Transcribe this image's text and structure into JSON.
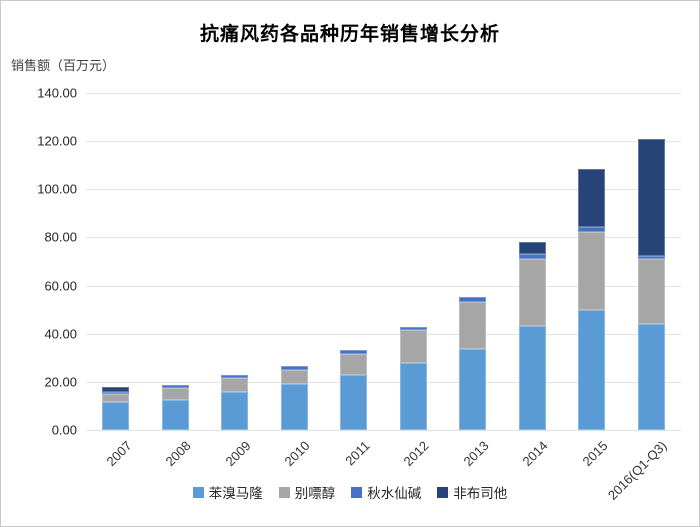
{
  "chart_data": {
    "type": "bar",
    "subtype": "stacked-column",
    "title": "抗痛风药各品种历年销售增长分析",
    "y_axis_title": "销售额（百万元）",
    "categories": [
      "2007",
      "2008",
      "2009",
      "2010",
      "2011",
      "2012",
      "2013",
      "2014",
      "2015",
      "2016(Q1-Q3)"
    ],
    "series": [
      {
        "name": "苯溴马隆",
        "color": "#5B9BD5",
        "values": [
          11.5,
          12.5,
          15.7,
          19.2,
          22.8,
          28.0,
          33.8,
          43.2,
          50.0,
          44.1
        ]
      },
      {
        "name": "别嘌醇",
        "color": "#A6A6A6",
        "values": [
          3.5,
          4.8,
          5.8,
          5.9,
          8.9,
          13.4,
          19.3,
          27.9,
          32.4,
          27.0
        ]
      },
      {
        "name": "秋水仙碱",
        "color": "#4472C4",
        "values": [
          1.0,
          1.5,
          1.5,
          1.4,
          1.5,
          1.5,
          2.1,
          2.1,
          1.8,
          1.0
        ]
      },
      {
        "name": "非布司他",
        "color": "#264478",
        "values": [
          2.0,
          0,
          0,
          0,
          0,
          0,
          0,
          4.8,
          24.4,
          48.7
        ]
      }
    ],
    "totals": [
      18.0,
      18.8,
      23.0,
      26.5,
      33.2,
      42.9,
      55.2,
      78.0,
      108.6,
      120.8
    ],
    "ylim": [
      0,
      140
    ],
    "y_ticks": [
      {
        "value": 140,
        "label": "140.00"
      },
      {
        "value": 120,
        "label": "120.00"
      },
      {
        "value": 100,
        "label": "100.00"
      },
      {
        "value": 80,
        "label": "80.00"
      },
      {
        "value": 60,
        "label": "60.00"
      },
      {
        "value": 40,
        "label": "40.00"
      },
      {
        "value": 20,
        "label": "20.00"
      },
      {
        "value": 0,
        "label": "0.00"
      }
    ],
    "grid": "horizontal",
    "legend_position": "bottom",
    "x_label_rotation_deg": -45
  }
}
